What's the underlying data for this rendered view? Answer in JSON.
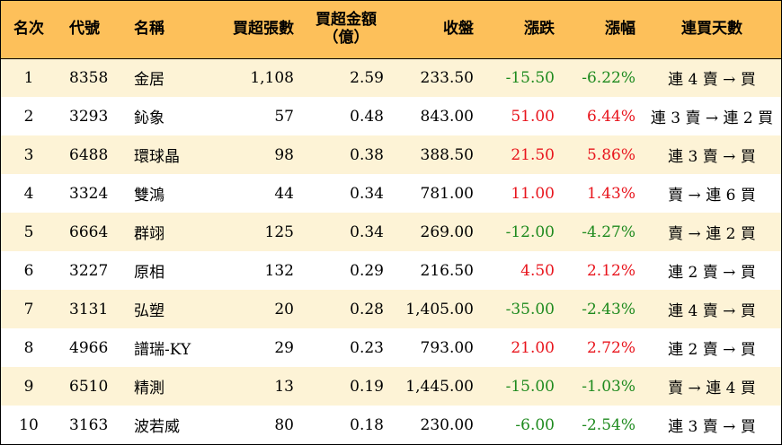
{
  "table": {
    "headers": {
      "rank": "名次",
      "code": "代號",
      "name": "名稱",
      "net_buy_lots": "買超張數",
      "net_buy_amount_line1": "買超金額",
      "net_buy_amount_line2": "（億）",
      "close": "收盤",
      "change": "漲跌",
      "change_pct": "漲幅",
      "streak": "連買天數"
    },
    "rows": [
      {
        "rank": "1",
        "code": "8358",
        "name": "金居",
        "lots": "1,108",
        "amount": "2.59",
        "close": "233.50",
        "change": "-15.50",
        "pct": "-6.22%",
        "streak": "連 4 賣 → 買",
        "dir": "down"
      },
      {
        "rank": "2",
        "code": "3293",
        "name": "鈊象",
        "lots": "57",
        "amount": "0.48",
        "close": "843.00",
        "change": "51.00",
        "pct": "6.44%",
        "streak": "連 3 賣 → 連 2 買",
        "dir": "up"
      },
      {
        "rank": "3",
        "code": "6488",
        "name": "環球晶",
        "lots": "98",
        "amount": "0.38",
        "close": "388.50",
        "change": "21.50",
        "pct": "5.86%",
        "streak": "連 3 賣 → 買",
        "dir": "up"
      },
      {
        "rank": "4",
        "code": "3324",
        "name": "雙鴻",
        "lots": "44",
        "amount": "0.34",
        "close": "781.00",
        "change": "11.00",
        "pct": "1.43%",
        "streak": "賣 → 連 6 買",
        "dir": "up"
      },
      {
        "rank": "5",
        "code": "6664",
        "name": "群翊",
        "lots": "125",
        "amount": "0.34",
        "close": "269.00",
        "change": "-12.00",
        "pct": "-4.27%",
        "streak": "賣 → 連 2 買",
        "dir": "down"
      },
      {
        "rank": "6",
        "code": "3227",
        "name": "原相",
        "lots": "132",
        "amount": "0.29",
        "close": "216.50",
        "change": "4.50",
        "pct": "2.12%",
        "streak": "連 2 賣 → 買",
        "dir": "up"
      },
      {
        "rank": "7",
        "code": "3131",
        "name": "弘塑",
        "lots": "20",
        "amount": "0.28",
        "close": "1,405.00",
        "change": "-35.00",
        "pct": "-2.43%",
        "streak": "連 4 賣 → 買",
        "dir": "down"
      },
      {
        "rank": "8",
        "code": "4966",
        "name": "譜瑞-KY",
        "lots": "29",
        "amount": "0.23",
        "close": "793.00",
        "change": "21.00",
        "pct": "2.72%",
        "streak": "連 2 賣 → 買",
        "dir": "up"
      },
      {
        "rank": "9",
        "code": "6510",
        "name": "精測",
        "lots": "13",
        "amount": "0.19",
        "close": "1,445.00",
        "change": "-15.00",
        "pct": "-1.03%",
        "streak": "賣 → 連 4 買",
        "dir": "down"
      },
      {
        "rank": "10",
        "code": "3163",
        "name": "波若威",
        "lots": "80",
        "amount": "0.18",
        "close": "230.00",
        "change": "-6.00",
        "pct": "-2.54%",
        "streak": "連 3 賣 → 買",
        "dir": "down"
      }
    ]
  },
  "colors": {
    "header_bg": "#fdc05a",
    "odd_row_bg": "#fdf3d6",
    "even_row_bg": "#ffffff",
    "up": "#e8141c",
    "down": "#1e8a1e"
  }
}
